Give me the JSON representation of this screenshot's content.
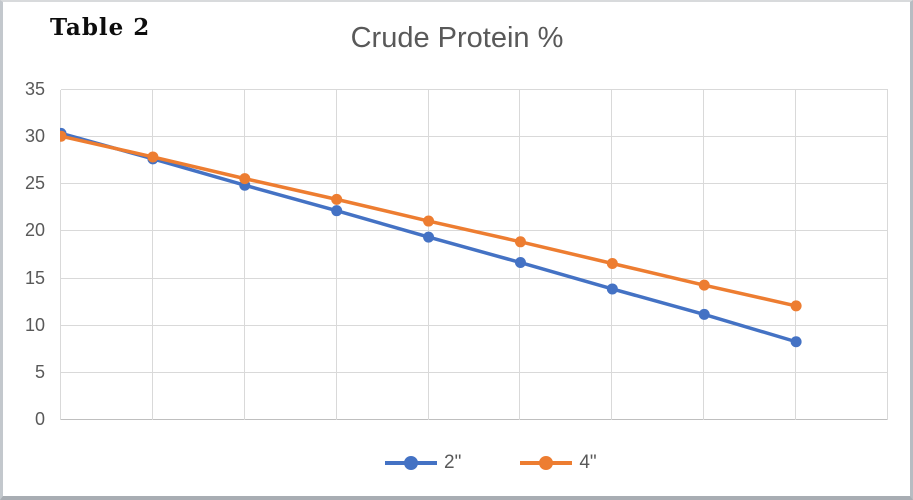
{
  "annotation": {
    "label": "Table 2"
  },
  "chart_data": {
    "type": "line",
    "title": "Crude Protein %",
    "x": [
      1,
      2,
      3,
      4,
      5,
      6,
      7,
      8,
      9
    ],
    "x_axis_labels_visible": false,
    "x_gridline_count": 10,
    "series": [
      {
        "name": "2\"",
        "color": "#4472C4",
        "values": [
          30.4,
          27.7,
          24.9,
          22.2,
          19.4,
          16.7,
          13.9,
          11.2,
          8.3
        ]
      },
      {
        "name": "4\"",
        "color": "#ED7D31",
        "values": [
          30.1,
          27.9,
          25.6,
          23.4,
          21.1,
          18.9,
          16.6,
          14.3,
          12.1
        ]
      }
    ],
    "xlabel": "",
    "ylabel": "",
    "ylim": [
      0,
      35
    ],
    "ytick_step": 5,
    "yticks": [
      "35",
      "30",
      "25",
      "20",
      "15",
      "10",
      "5",
      "0"
    ],
    "grid": "both",
    "legend_position": "bottom",
    "colors": {
      "gridline": "#D9D9D9",
      "axis_line": "#BFBFBF",
      "tick_text": "#595959",
      "title_text": "#595959"
    }
  }
}
